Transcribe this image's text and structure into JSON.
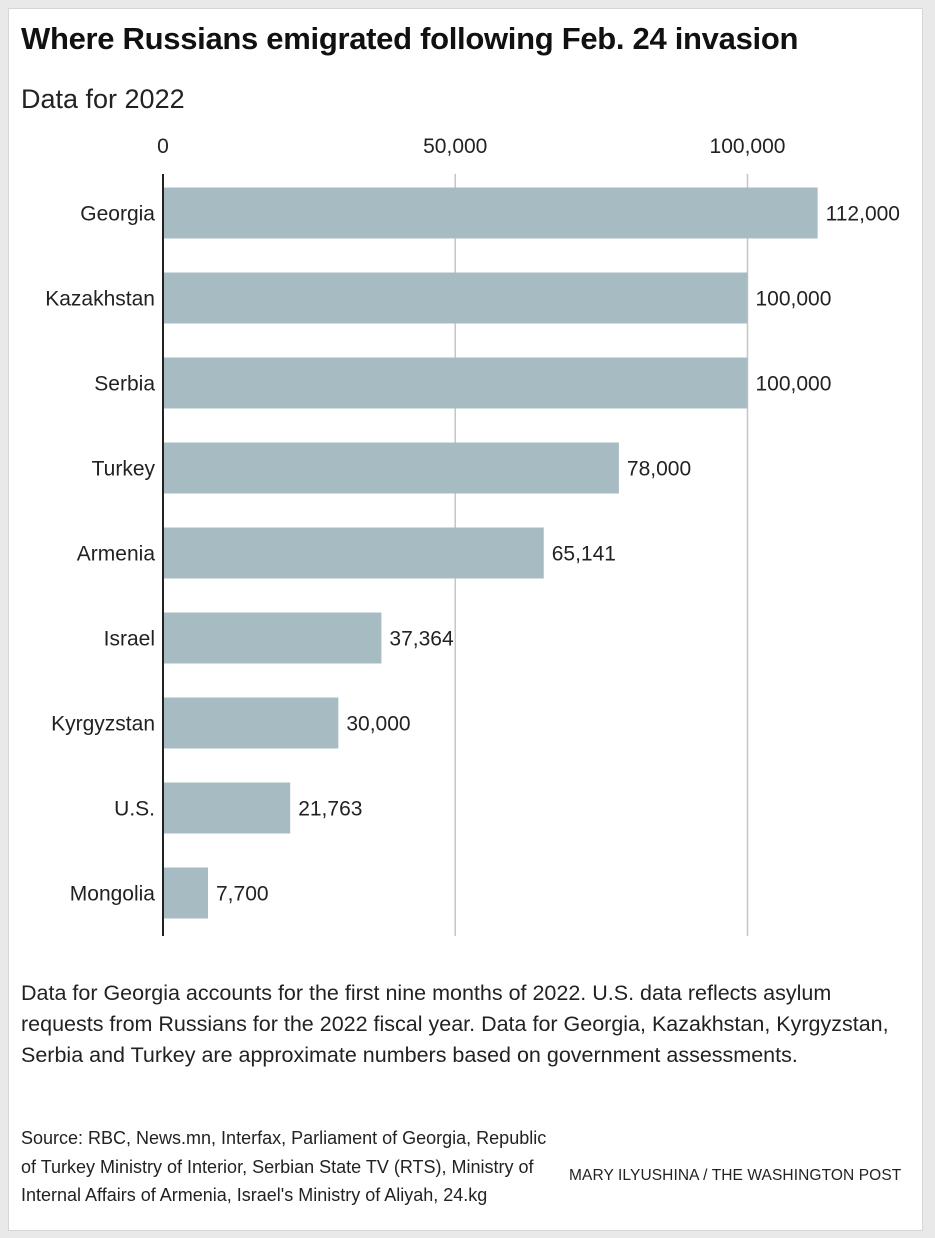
{
  "chart_data": {
    "type": "bar",
    "orientation": "horizontal",
    "title": "Where Russians emigrated following Feb. 24 invasion",
    "subtitle": "Data for 2022",
    "categories": [
      "Georgia",
      "Kazakhstan",
      "Serbia",
      "Turkey",
      "Armenia",
      "Israel",
      "Kyrgyzstan",
      "U.S.",
      "Mongolia"
    ],
    "values": [
      112000,
      100000,
      100000,
      78000,
      65141,
      37364,
      30000,
      21763,
      7700
    ],
    "value_labels": [
      "112,000",
      "100,000",
      "100,000",
      "78,000",
      "65,141",
      "37,364",
      "30,000",
      "21,763",
      "7,700"
    ],
    "x_ticks": [
      0,
      50000,
      100000
    ],
    "x_tick_labels": [
      "0",
      "50,000",
      "100,000"
    ],
    "xlim": [
      0,
      112000
    ],
    "xlabel": "",
    "ylabel": "",
    "grid": true,
    "axis_position": "top",
    "bar_color": "#a7bcc2"
  },
  "note": "Data for Georgia accounts for the first nine months of 2022. U.S. data reflects asylum requests from Russians for the 2022 fiscal year. Data for Georgia, Kazakhstan, Kyrgyzstan, Serbia and Turkey are approximate numbers based on government assessments.",
  "source": "Source: RBC, News.mn, Interfax, Parliament of Georgia, Republic of Turkey Ministry of Interior, Serbian State TV (RTS), Ministry of Internal Affairs of Armenia, Israel's Ministry of Aliyah, 24.kg",
  "credit": "MARY ILYUSHINA / THE WASHINGTON POST"
}
